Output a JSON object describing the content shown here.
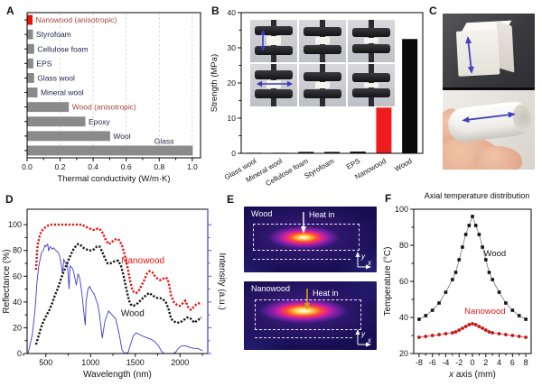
{
  "panels": {
    "a": "A",
    "b": "B",
    "c": "C",
    "d": "D",
    "e": "E",
    "f": "F"
  },
  "panel_e": {
    "top": {
      "sample_label": "Wood",
      "heat_label": "Heat in",
      "x_axis_label": "x",
      "y_axis_label": "y"
    },
    "bottom": {
      "sample_label": "Nanowood",
      "heat_label": "Heat in",
      "x_axis_label": "x",
      "y_axis_label": "y"
    }
  },
  "colors": {
    "accent_red": "#e8120c",
    "bar_gray": "#8a8a8a",
    "solar_blue": "#3c3cd0",
    "black": "#141414",
    "dark_red_label": "#a8453c"
  },
  "chart_data": [
    {
      "id": "thermal_conductivity",
      "panel": "A",
      "type": "bar",
      "orientation": "horizontal",
      "categories": [
        "Nanowood (anisotropic)",
        "Styrofoam",
        "Cellulose foam",
        "EPS",
        "Glass wool",
        "Mineral wool",
        "Wood (anisotropic)",
        "Epoxy",
        "Wool",
        "Glass"
      ],
      "values": [
        0.03,
        0.033,
        0.04,
        0.035,
        0.04,
        0.06,
        0.25,
        0.35,
        0.5,
        1.0
      ],
      "bar_colors": [
        "#e8120c",
        "#8a8a8a",
        "#8a8a8a",
        "#8a8a8a",
        "#8a8a8a",
        "#8a8a8a",
        "#8a8a8a",
        "#8a8a8a",
        "#8a8a8a",
        "#8a8a8a"
      ],
      "label_colors": [
        "#a8453c",
        "#26264d",
        "#26264d",
        "#26264d",
        "#26264d",
        "#26264d",
        "#a8453c",
        "#26264d",
        "#26264d",
        "#26264d"
      ],
      "xlabel": "Thermal conductivity (W/m·K)",
      "xlim": [
        0,
        1.05
      ],
      "xticks": [
        0.0,
        0.2,
        0.4,
        0.6,
        0.8,
        1.0
      ],
      "grid": "vertical-dashed"
    },
    {
      "id": "strength",
      "panel": "B",
      "type": "bar",
      "orientation": "vertical",
      "categories": [
        "Glass wool",
        "Mineral wool",
        "Cellulose foam",
        "Styrofoam",
        "EPS",
        "Nanowood",
        "Wood"
      ],
      "values": [
        0.05,
        0.05,
        0.3,
        0.35,
        0.5,
        13,
        32.5
      ],
      "bar_colors": [
        "#141414",
        "#141414",
        "#141414",
        "#141414",
        "#141414",
        "#ee1c1c",
        "#0b0b0b"
      ],
      "ylabel": "Strength (MPa)",
      "ylim": [
        0,
        40
      ],
      "yticks": [
        0,
        10,
        20,
        30,
        40
      ]
    },
    {
      "id": "spectra",
      "panel": "D",
      "type": "line",
      "xlabel": "Wavelength (nm)",
      "ylabel_left": "Reflectance (%)",
      "ylabel_right": "Intensity (a.u.)",
      "xlim": [
        290,
        2310
      ],
      "ylim": [
        0,
        112
      ],
      "xticks": [
        500,
        1000,
        1500,
        2000
      ],
      "yticks": [
        0,
        20,
        40,
        60,
        80,
        100
      ],
      "annotations": [
        {
          "text": "Nanowood",
          "color": "#e8120c",
          "x": 1585,
          "y": 70
        },
        {
          "text": "Wood",
          "color": "#141414",
          "x": 1470,
          "y": 29
        }
      ],
      "series": [
        {
          "name": "Solar spectrum",
          "color": "#3c3cd0",
          "style": "thin-line",
          "points": [
            [
              300,
              0
            ],
            [
              350,
              15
            ],
            [
              380,
              35
            ],
            [
              400,
              55
            ],
            [
              420,
              68
            ],
            [
              450,
              78
            ],
            [
              470,
              80
            ],
            [
              490,
              84
            ],
            [
              500,
              83
            ],
            [
              520,
              85
            ],
            [
              530,
              80
            ],
            [
              550,
              83
            ],
            [
              570,
              81
            ],
            [
              590,
              82
            ],
            [
              610,
              80
            ],
            [
              630,
              79
            ],
            [
              650,
              77
            ],
            [
              660,
              74
            ],
            [
              687,
              62
            ],
            [
              700,
              73
            ],
            [
              720,
              70
            ],
            [
              740,
              69
            ],
            [
              760,
              50
            ],
            [
              770,
              68
            ],
            [
              800,
              66
            ],
            [
              820,
              60
            ],
            [
              840,
              53
            ],
            [
              860,
              62
            ],
            [
              880,
              58
            ],
            [
              900,
              48
            ],
            [
              930,
              28
            ],
            [
              940,
              22
            ],
            [
              950,
              40
            ],
            [
              970,
              50
            ],
            [
              990,
              52
            ],
            [
              1010,
              49
            ],
            [
              1040,
              46
            ],
            [
              1080,
              38
            ],
            [
              1100,
              30
            ],
            [
              1130,
              12
            ],
            [
              1160,
              25
            ],
            [
              1200,
              33
            ],
            [
              1240,
              30
            ],
            [
              1280,
              27
            ],
            [
              1320,
              15
            ],
            [
              1350,
              3
            ],
            [
              1380,
              0
            ],
            [
              1420,
              1
            ],
            [
              1450,
              8
            ],
            [
              1480,
              14
            ],
            [
              1510,
              16
            ],
            [
              1540,
              15
            ],
            [
              1570,
              14
            ],
            [
              1600,
              13
            ],
            [
              1640,
              12
            ],
            [
              1680,
              11
            ],
            [
              1720,
              9
            ],
            [
              1760,
              6
            ],
            [
              1790,
              2
            ],
            [
              1820,
              0
            ],
            [
              1870,
              0
            ],
            [
              1920,
              0
            ],
            [
              1950,
              1
            ],
            [
              1980,
              4
            ],
            [
              2020,
              6
            ],
            [
              2060,
              6
            ],
            [
              2100,
              5
            ],
            [
              2150,
              4
            ],
            [
              2200,
              4
            ],
            [
              2250,
              2
            ]
          ]
        },
        {
          "name": "Wood",
          "color": "#141414",
          "style": "dotted",
          "points": [
            [
              390,
              7
            ],
            [
              420,
              14
            ],
            [
              450,
              21
            ],
            [
              480,
              26
            ],
            [
              510,
              30
            ],
            [
              540,
              34
            ],
            [
              570,
              39
            ],
            [
              600,
              45
            ],
            [
              630,
              50
            ],
            [
              660,
              56
            ],
            [
              690,
              62
            ],
            [
              720,
              67
            ],
            [
              750,
              72
            ],
            [
              780,
              77
            ],
            [
              810,
              81
            ],
            [
              840,
              84
            ],
            [
              860,
              85
            ],
            [
              890,
              84
            ],
            [
              920,
              82
            ],
            [
              950,
              81
            ],
            [
              980,
              80
            ],
            [
              1010,
              80
            ],
            [
              1040,
              81
            ],
            [
              1070,
              83
            ],
            [
              1100,
              83
            ],
            [
              1130,
              79
            ],
            [
              1160,
              74
            ],
            [
              1190,
              70
            ],
            [
              1220,
              70
            ],
            [
              1250,
              71
            ],
            [
              1280,
              72
            ],
            [
              1310,
              72
            ],
            [
              1340,
              68
            ],
            [
              1370,
              60
            ],
            [
              1400,
              50
            ],
            [
              1430,
              41
            ],
            [
              1450,
              38
            ],
            [
              1480,
              37
            ],
            [
              1510,
              38
            ],
            [
              1540,
              40
            ],
            [
              1570,
              42
            ],
            [
              1600,
              44
            ],
            [
              1630,
              46
            ],
            [
              1660,
              47
            ],
            [
              1690,
              45
            ],
            [
              1720,
              44
            ],
            [
              1750,
              43
            ],
            [
              1780,
              43
            ],
            [
              1810,
              42
            ],
            [
              1840,
              40
            ],
            [
              1870,
              35
            ],
            [
              1900,
              27
            ],
            [
              1930,
              25
            ],
            [
              1960,
              24
            ],
            [
              2000,
              24
            ],
            [
              2040,
              26
            ],
            [
              2080,
              28
            ],
            [
              2120,
              27
            ],
            [
              2160,
              24
            ],
            [
              2200,
              26
            ],
            [
              2240,
              28
            ]
          ]
        },
        {
          "name": "Nanowood",
          "color": "#e8120c",
          "style": "dotted",
          "points": [
            [
              390,
              65
            ],
            [
              400,
              78
            ],
            [
              410,
              85
            ],
            [
              430,
              91
            ],
            [
              450,
              95
            ],
            [
              480,
              97
            ],
            [
              510,
              99
            ],
            [
              550,
              100
            ],
            [
              600,
              100
            ],
            [
              650,
              100
            ],
            [
              700,
              100
            ],
            [
              750,
              100
            ],
            [
              800,
              100
            ],
            [
              850,
              100
            ],
            [
              900,
              100
            ],
            [
              930,
              99
            ],
            [
              960,
              98
            ],
            [
              990,
              97
            ],
            [
              1020,
              96
            ],
            [
              1050,
              96
            ],
            [
              1080,
              97
            ],
            [
              1110,
              96
            ],
            [
              1140,
              93
            ],
            [
              1170,
              88
            ],
            [
              1200,
              85
            ],
            [
              1230,
              86
            ],
            [
              1260,
              88
            ],
            [
              1290,
              89
            ],
            [
              1320,
              88
            ],
            [
              1350,
              84
            ],
            [
              1380,
              77
            ],
            [
              1410,
              68
            ],
            [
              1440,
              57
            ],
            [
              1460,
              51
            ],
            [
              1480,
              48
            ],
            [
              1510,
              47
            ],
            [
              1540,
              49
            ],
            [
              1570,
              53
            ],
            [
              1600,
              57
            ],
            [
              1630,
              62
            ],
            [
              1660,
              64
            ],
            [
              1690,
              63
            ],
            [
              1720,
              60
            ],
            [
              1750,
              58
            ],
            [
              1780,
              57
            ],
            [
              1810,
              58
            ],
            [
              1840,
              59
            ],
            [
              1860,
              58
            ],
            [
              1880,
              53
            ],
            [
              1900,
              45
            ],
            [
              1930,
              40
            ],
            [
              1960,
              38
            ],
            [
              2000,
              37
            ],
            [
              2030,
              39
            ],
            [
              2060,
              41
            ],
            [
              2090,
              36
            ],
            [
              2120,
              34
            ],
            [
              2150,
              36
            ],
            [
              2180,
              38
            ],
            [
              2210,
              39
            ],
            [
              2240,
              38
            ]
          ]
        }
      ]
    },
    {
      "id": "axial_temperature",
      "panel": "F",
      "type": "line",
      "title": "Axial temperature distribution",
      "xlabel_italic": "x",
      "xlabel_rest": " axis (mm)",
      "ylabel": "Temperature (°C)",
      "xlim": [
        -8.8,
        8.8
      ],
      "ylim": [
        20,
        100
      ],
      "xticks": [
        -8,
        -6,
        -4,
        -2,
        0,
        2,
        4,
        6,
        8
      ],
      "yticks": [
        20,
        40,
        60,
        80,
        100
      ],
      "annotations": [
        {
          "text": "Wood",
          "color": "#141414",
          "x": 1.7,
          "y": 74
        },
        {
          "text": "Nanowood",
          "color": "#d41c1c",
          "x": -1.2,
          "y": 42
        }
      ],
      "x": [
        -8,
        -7,
        -6,
        -5,
        -4,
        -3,
        -2.5,
        -2,
        -1.5,
        -1,
        -0.5,
        0,
        0.5,
        1,
        1.5,
        2,
        2.5,
        3,
        4,
        5,
        6,
        7,
        8
      ],
      "series": [
        {
          "name": "Wood",
          "color": "#141414",
          "marker": "square",
          "values": [
            39,
            41,
            44,
            48,
            54,
            61,
            65,
            72,
            79,
            86,
            91,
            96,
            91,
            86,
            79,
            72,
            65,
            61,
            54,
            48,
            44,
            41,
            39
          ]
        },
        {
          "name": "Nanowood",
          "color": "#c41414",
          "marker": "circle",
          "values": [
            29,
            29.5,
            30,
            30.5,
            31,
            31.5,
            32,
            33,
            34,
            35,
            36,
            36.5,
            36,
            35,
            34,
            33,
            32,
            31.5,
            31,
            30.5,
            30,
            29.5,
            29
          ]
        }
      ]
    }
  ]
}
